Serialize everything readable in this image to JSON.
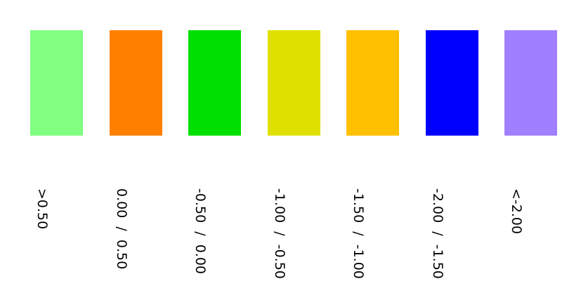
{
  "legend": {
    "items": [
      {
        "label": ">0.50",
        "color": "#80ff80"
      },
      {
        "label": "0.00  /  0.50",
        "color": "#ff8000"
      },
      {
        "label": "-0.50  /  0.00",
        "color": "#00e000"
      },
      {
        "label": "-1.00  /  -0.50",
        "color": "#e0e000"
      },
      {
        "label": "-1.50  /  -1.00",
        "color": "#ffc000"
      },
      {
        "label": "-2.00  /  -1.50",
        "color": "#0000ff"
      },
      {
        "label": "<-2.00",
        "color": "#a080ff"
      }
    ]
  }
}
